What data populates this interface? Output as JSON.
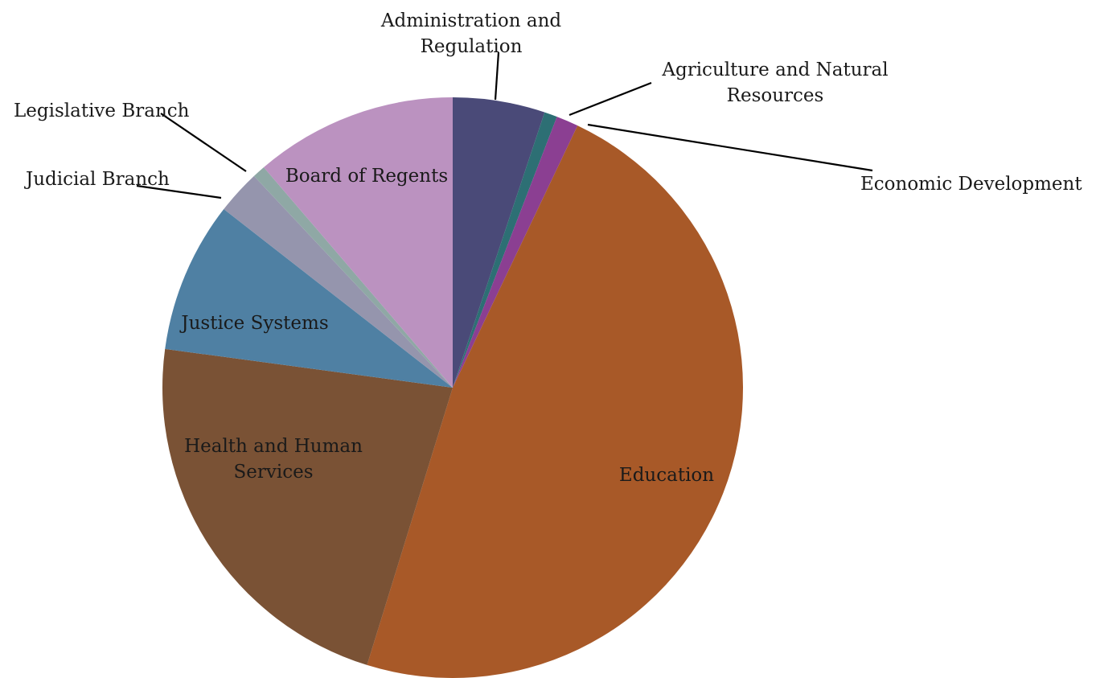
{
  "chart_data": {
    "type": "pie",
    "title": "",
    "start_angle_deg": 0,
    "direction": "clockwise",
    "slices": [
      {
        "label": "Administration and Regulation",
        "value": 5.0,
        "color": "#4a4a78"
      },
      {
        "label": "Agriculture and Natural Resources",
        "value": 0.7,
        "color": "#2d6f74"
      },
      {
        "label": "Economic Development",
        "value": 1.2,
        "color": "#8b3f92"
      },
      {
        "label": "Education",
        "value": 46.5,
        "color": "#a85928"
      },
      {
        "label": "Health and Human Services",
        "value": 21.8,
        "color": "#7a5235"
      },
      {
        "label": "Justice Systems",
        "value": 8.2,
        "color": "#4f80a3"
      },
      {
        "label": "Judicial Branch",
        "value": 2.4,
        "color": "#9595ad"
      },
      {
        "label": "Legislative Branch",
        "value": 0.7,
        "color": "#8fa8a5"
      },
      {
        "label": "Board of Regents",
        "value": 11.0,
        "color": "#bb92c0"
      }
    ]
  }
}
